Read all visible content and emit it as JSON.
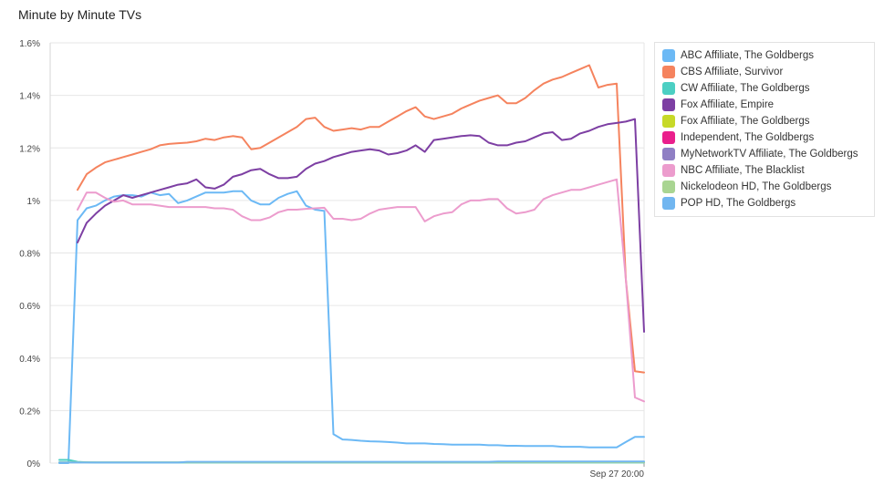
{
  "chart_data": {
    "type": "line",
    "title": "Minute by Minute TVs",
    "xlabel": "",
    "ylabel": "",
    "ylim": [
      0,
      1.6
    ],
    "yticks": [
      "0%",
      "0.2%",
      "0.4%",
      "0.6%",
      "0.8%",
      "1%",
      "1.2%",
      "1.4%",
      "1.6%"
    ],
    "xtick_label": "Sep 27 20:00",
    "xtick_index": 64,
    "x_count": 65,
    "grid": true,
    "legend_placement": "right",
    "series": [
      {
        "name": "ABC Affiliate, The Goldbergs",
        "color": "#6cb9f5",
        "values": [
          0,
          0,
          0.925,
          0.97,
          0.98,
          1.0,
          1.015,
          1.02,
          1.02,
          1.015,
          1.03,
          1.02,
          1.025,
          0.99,
          1.0,
          1.015,
          1.03,
          1.03,
          1.03,
          1.035,
          1.035,
          1.0,
          0.985,
          0.985,
          1.01,
          1.025,
          1.035,
          0.98,
          0.965,
          0.96,
          0.11,
          0.09,
          0.088,
          0.085,
          0.083,
          0.082,
          0.08,
          0.078,
          0.075,
          0.075,
          0.075,
          0.073,
          0.072,
          0.07,
          0.07,
          0.07,
          0.07,
          0.068,
          0.068,
          0.066,
          0.066,
          0.065,
          0.065,
          0.065,
          0.065,
          0.062,
          0.062,
          0.062,
          0.06,
          0.06,
          0.06,
          0.06,
          0.08,
          0.1,
          0.1
        ]
      },
      {
        "name": "CBS Affiliate, Survivor",
        "color": "#f5835e",
        "values": [
          null,
          null,
          1.04,
          1.1,
          1.125,
          1.145,
          1.155,
          1.165,
          1.175,
          1.185,
          1.195,
          1.21,
          1.215,
          1.218,
          1.22,
          1.225,
          1.235,
          1.23,
          1.24,
          1.245,
          1.24,
          1.195,
          1.2,
          1.22,
          1.24,
          1.26,
          1.28,
          1.31,
          1.315,
          1.28,
          1.265,
          1.27,
          1.275,
          1.27,
          1.28,
          1.28,
          1.3,
          1.32,
          1.34,
          1.355,
          1.32,
          1.31,
          1.32,
          1.33,
          1.35,
          1.365,
          1.38,
          1.39,
          1.4,
          1.37,
          1.37,
          1.39,
          1.42,
          1.445,
          1.46,
          1.47,
          1.485,
          1.5,
          1.515,
          1.43,
          1.44,
          1.445,
          0.7,
          0.35,
          0.345
        ]
      },
      {
        "name": "CW Affiliate, The Goldbergs",
        "color": "#4ccfc3",
        "values": [
          0.012,
          0.012,
          0.005,
          0.003,
          0.002,
          0.002,
          0.002,
          0.002,
          0.002,
          0.002,
          0.002,
          0.002,
          0.002,
          0.002,
          0.002,
          0.002,
          0.002,
          0.002,
          0.002,
          0.002,
          0.002,
          0.002,
          0.002,
          0.002,
          0.002,
          0.002,
          0.002,
          0.002,
          0.002,
          0.002,
          0.002,
          0.002,
          0.002,
          0.002,
          0.002,
          0.002,
          0.002,
          0.002,
          0.002,
          0.002,
          0.002,
          0.002,
          0.002,
          0.002,
          0.002,
          0.002,
          0.002,
          0.002,
          0.002,
          0.002,
          0.002,
          0.002,
          0.002,
          0.002,
          0.002,
          0.002,
          0.002,
          0.002,
          0.002,
          0.002,
          0.002,
          0.002,
          0.002,
          0.002,
          0.002
        ]
      },
      {
        "name": "Fox Affiliate, Empire",
        "color": "#7d3fa3",
        "values": [
          null,
          null,
          0.84,
          0.915,
          0.95,
          0.98,
          1.0,
          1.02,
          1.01,
          1.02,
          1.03,
          1.04,
          1.05,
          1.06,
          1.065,
          1.08,
          1.05,
          1.045,
          1.06,
          1.09,
          1.1,
          1.115,
          1.12,
          1.1,
          1.085,
          1.085,
          1.09,
          1.12,
          1.14,
          1.15,
          1.165,
          1.175,
          1.185,
          1.19,
          1.195,
          1.19,
          1.175,
          1.18,
          1.19,
          1.21,
          1.185,
          1.23,
          1.235,
          1.24,
          1.245,
          1.248,
          1.245,
          1.22,
          1.21,
          1.21,
          1.22,
          1.225,
          1.24,
          1.255,
          1.26,
          1.23,
          1.235,
          1.255,
          1.265,
          1.28,
          1.29,
          1.295,
          1.3,
          1.31,
          0.5
        ]
      },
      {
        "name": "Fox Affiliate, The Goldbergs",
        "color": "#c7d928",
        "values": []
      },
      {
        "name": "Independent, The Goldbergs",
        "color": "#ea1f8c",
        "values": []
      },
      {
        "name": "MyNetworkTV Affiliate, The Goldbergs",
        "color": "#8f7fc4",
        "values": []
      },
      {
        "name": "NBC Affiliate, The Blacklist",
        "color": "#ec9ccd",
        "values": [
          null,
          null,
          0.965,
          1.03,
          1.03,
          1.01,
          0.995,
          1.0,
          0.985,
          0.985,
          0.985,
          0.98,
          0.975,
          0.975,
          0.975,
          0.975,
          0.975,
          0.97,
          0.97,
          0.965,
          0.94,
          0.925,
          0.925,
          0.935,
          0.955,
          0.965,
          0.965,
          0.968,
          0.97,
          0.972,
          0.93,
          0.93,
          0.925,
          0.93,
          0.95,
          0.965,
          0.97,
          0.975,
          0.975,
          0.975,
          0.92,
          0.94,
          0.95,
          0.955,
          0.985,
          1.0,
          1.0,
          1.005,
          1.005,
          0.97,
          0.95,
          0.955,
          0.965,
          1.005,
          1.02,
          1.03,
          1.04,
          1.04,
          1.05,
          1.06,
          1.07,
          1.08,
          0.7,
          0.25,
          0.235
        ]
      },
      {
        "name": "Nickelodeon HD, The Goldbergs",
        "color": "#a9d592",
        "values": [
          0.003,
          0.003,
          0.003,
          0.003,
          0.003,
          0.003,
          0.003,
          0.003,
          0.003,
          0.003,
          0.003,
          0.003,
          0.003,
          0.003,
          0.003,
          0.003,
          0.003,
          0.003,
          0.003,
          0.003,
          0.003,
          0.003,
          0.003,
          0.003,
          0.003,
          0.003,
          0.003,
          0.003,
          0.003,
          0.003,
          0.003,
          0.003,
          0.003,
          0.003,
          0.003,
          0.003,
          0.003,
          0.003,
          0.003,
          0.003,
          0.003,
          0.003,
          0.003,
          0.003,
          0.003,
          0.003,
          0.003,
          0.003,
          0.003,
          0.003,
          0.003,
          0.003,
          0.003,
          0.003,
          0.003,
          0.003,
          0.003,
          0.003,
          0.003,
          0.003,
          0.003,
          0.003,
          0.003,
          0.003,
          0.003
        ]
      },
      {
        "name": "POP HD, The Goldbergs",
        "color": "#71b6f0",
        "values": [
          0.002,
          0.002,
          0.002,
          0.002,
          0.002,
          0.002,
          0.002,
          0.002,
          0.002,
          0.002,
          0.002,
          0.002,
          0.002,
          0.002,
          0.005,
          0.005,
          0.005,
          0.005,
          0.005,
          0.005,
          0.005,
          0.005,
          0.005,
          0.005,
          0.005,
          0.005,
          0.005,
          0.005,
          0.005,
          0.005,
          0.005,
          0.005,
          0.005,
          0.005,
          0.005,
          0.005,
          0.005,
          0.005,
          0.005,
          0.005,
          0.005,
          0.005,
          0.005,
          0.005,
          0.005,
          0.005,
          0.005,
          0.005,
          0.006,
          0.006,
          0.006,
          0.006,
          0.006,
          0.006,
          0.006,
          0.006,
          0.006,
          0.006,
          0.006,
          0.006,
          0.006,
          0.006,
          0.006,
          0.006,
          0.006
        ]
      }
    ]
  }
}
